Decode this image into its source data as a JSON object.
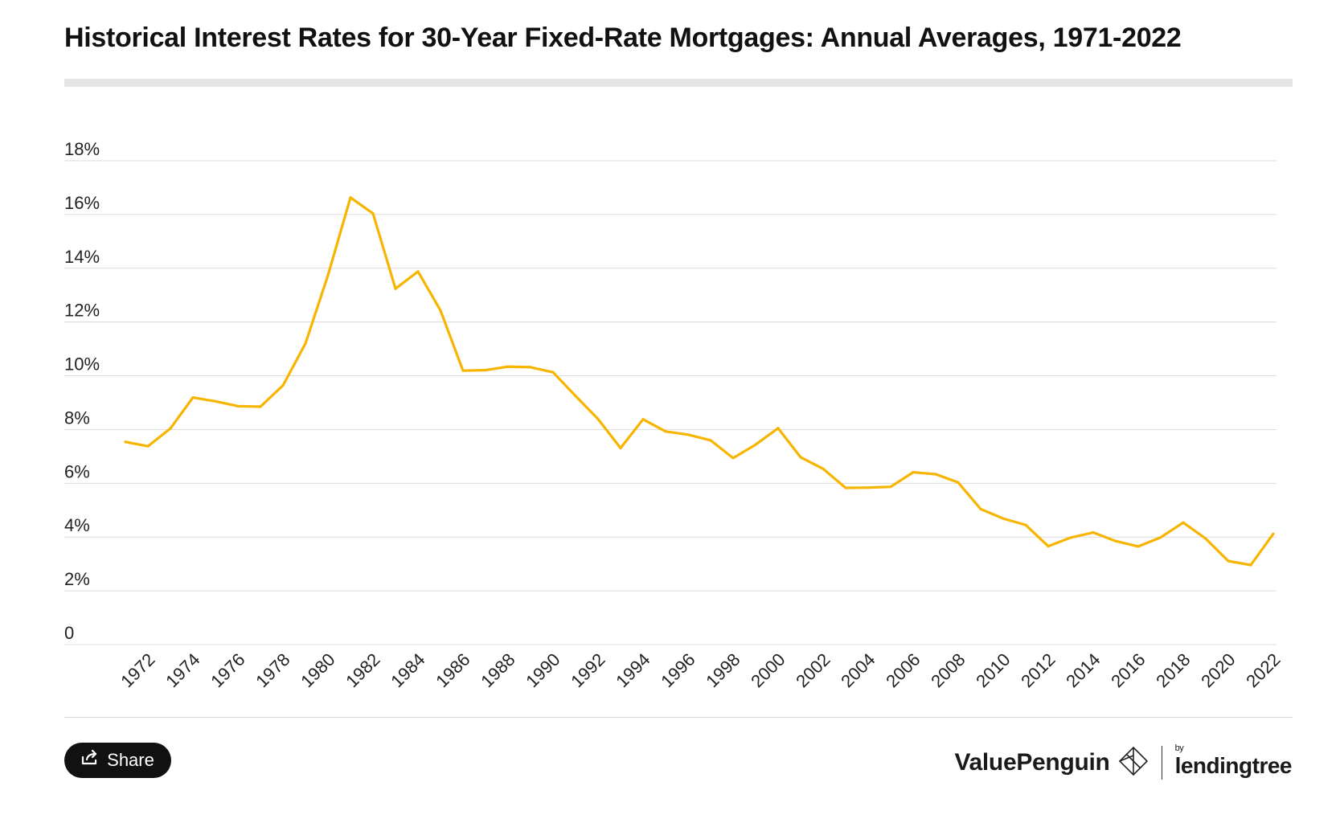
{
  "title": "Historical Interest Rates for 30-Year Fixed-Rate Mortgages: Annual Averages, 1971-2022",
  "share_label": "Share",
  "brand": {
    "valuepenguin": "ValuePenguin",
    "by": "by",
    "lendingtree": "lendingtree"
  },
  "icons": {
    "share": "share-icon",
    "valuepenguin_logo": "valuepenguin-logo-icon",
    "lendingtree_leaf": "leaf-icon"
  },
  "colors": {
    "line": "#F7B500",
    "grid": "#dcdcdc",
    "button": "#111111"
  },
  "chart_data": {
    "type": "line",
    "title": "Historical Interest Rates for 30-Year Fixed-Rate Mortgages: Annual Averages, 1971-2022",
    "xlabel": "",
    "ylabel": "",
    "ylim": [
      0,
      18
    ],
    "y_ticks": [
      0,
      2,
      4,
      6,
      8,
      10,
      12,
      14,
      16,
      18
    ],
    "y_tick_labels": [
      "0",
      "2%",
      "4%",
      "6%",
      "8%",
      "10%",
      "12%",
      "14%",
      "16%",
      "18%"
    ],
    "x_tick_labels": [
      "1972",
      "1974",
      "1976",
      "1978",
      "1980",
      "1982",
      "1984",
      "1986",
      "1988",
      "1990",
      "1992",
      "1994",
      "1996",
      "1998",
      "2000",
      "2002",
      "2004",
      "2006",
      "2008",
      "2010",
      "2012",
      "2014",
      "2016",
      "2018",
      "2020",
      "2022"
    ],
    "grid": true,
    "legend": "none",
    "x": [
      1971,
      1972,
      1973,
      1974,
      1975,
      1976,
      1977,
      1978,
      1979,
      1980,
      1981,
      1982,
      1983,
      1984,
      1985,
      1986,
      1987,
      1988,
      1989,
      1990,
      1991,
      1992,
      1993,
      1994,
      1995,
      1996,
      1997,
      1998,
      1999,
      2000,
      2001,
      2002,
      2003,
      2004,
      2005,
      2006,
      2007,
      2008,
      2009,
      2010,
      2011,
      2012,
      2013,
      2014,
      2015,
      2016,
      2017,
      2018,
      2019,
      2020,
      2021,
      2022
    ],
    "series": [
      {
        "values": [
          7.54,
          7.38,
          8.04,
          9.19,
          9.05,
          8.87,
          8.85,
          9.64,
          11.2,
          13.74,
          16.63,
          16.04,
          13.24,
          13.88,
          12.43,
          10.19,
          10.21,
          10.34,
          10.32,
          10.13,
          9.25,
          8.39,
          7.31,
          8.38,
          7.93,
          7.81,
          7.6,
          6.94,
          7.44,
          8.05,
          6.97,
          6.54,
          5.83,
          5.84,
          5.87,
          6.41,
          6.34,
          6.03,
          5.04,
          4.69,
          4.45,
          3.66,
          3.98,
          4.17,
          3.85,
          3.65,
          3.99,
          4.54,
          3.94,
          3.11,
          2.96,
          4.12
        ]
      }
    ]
  }
}
